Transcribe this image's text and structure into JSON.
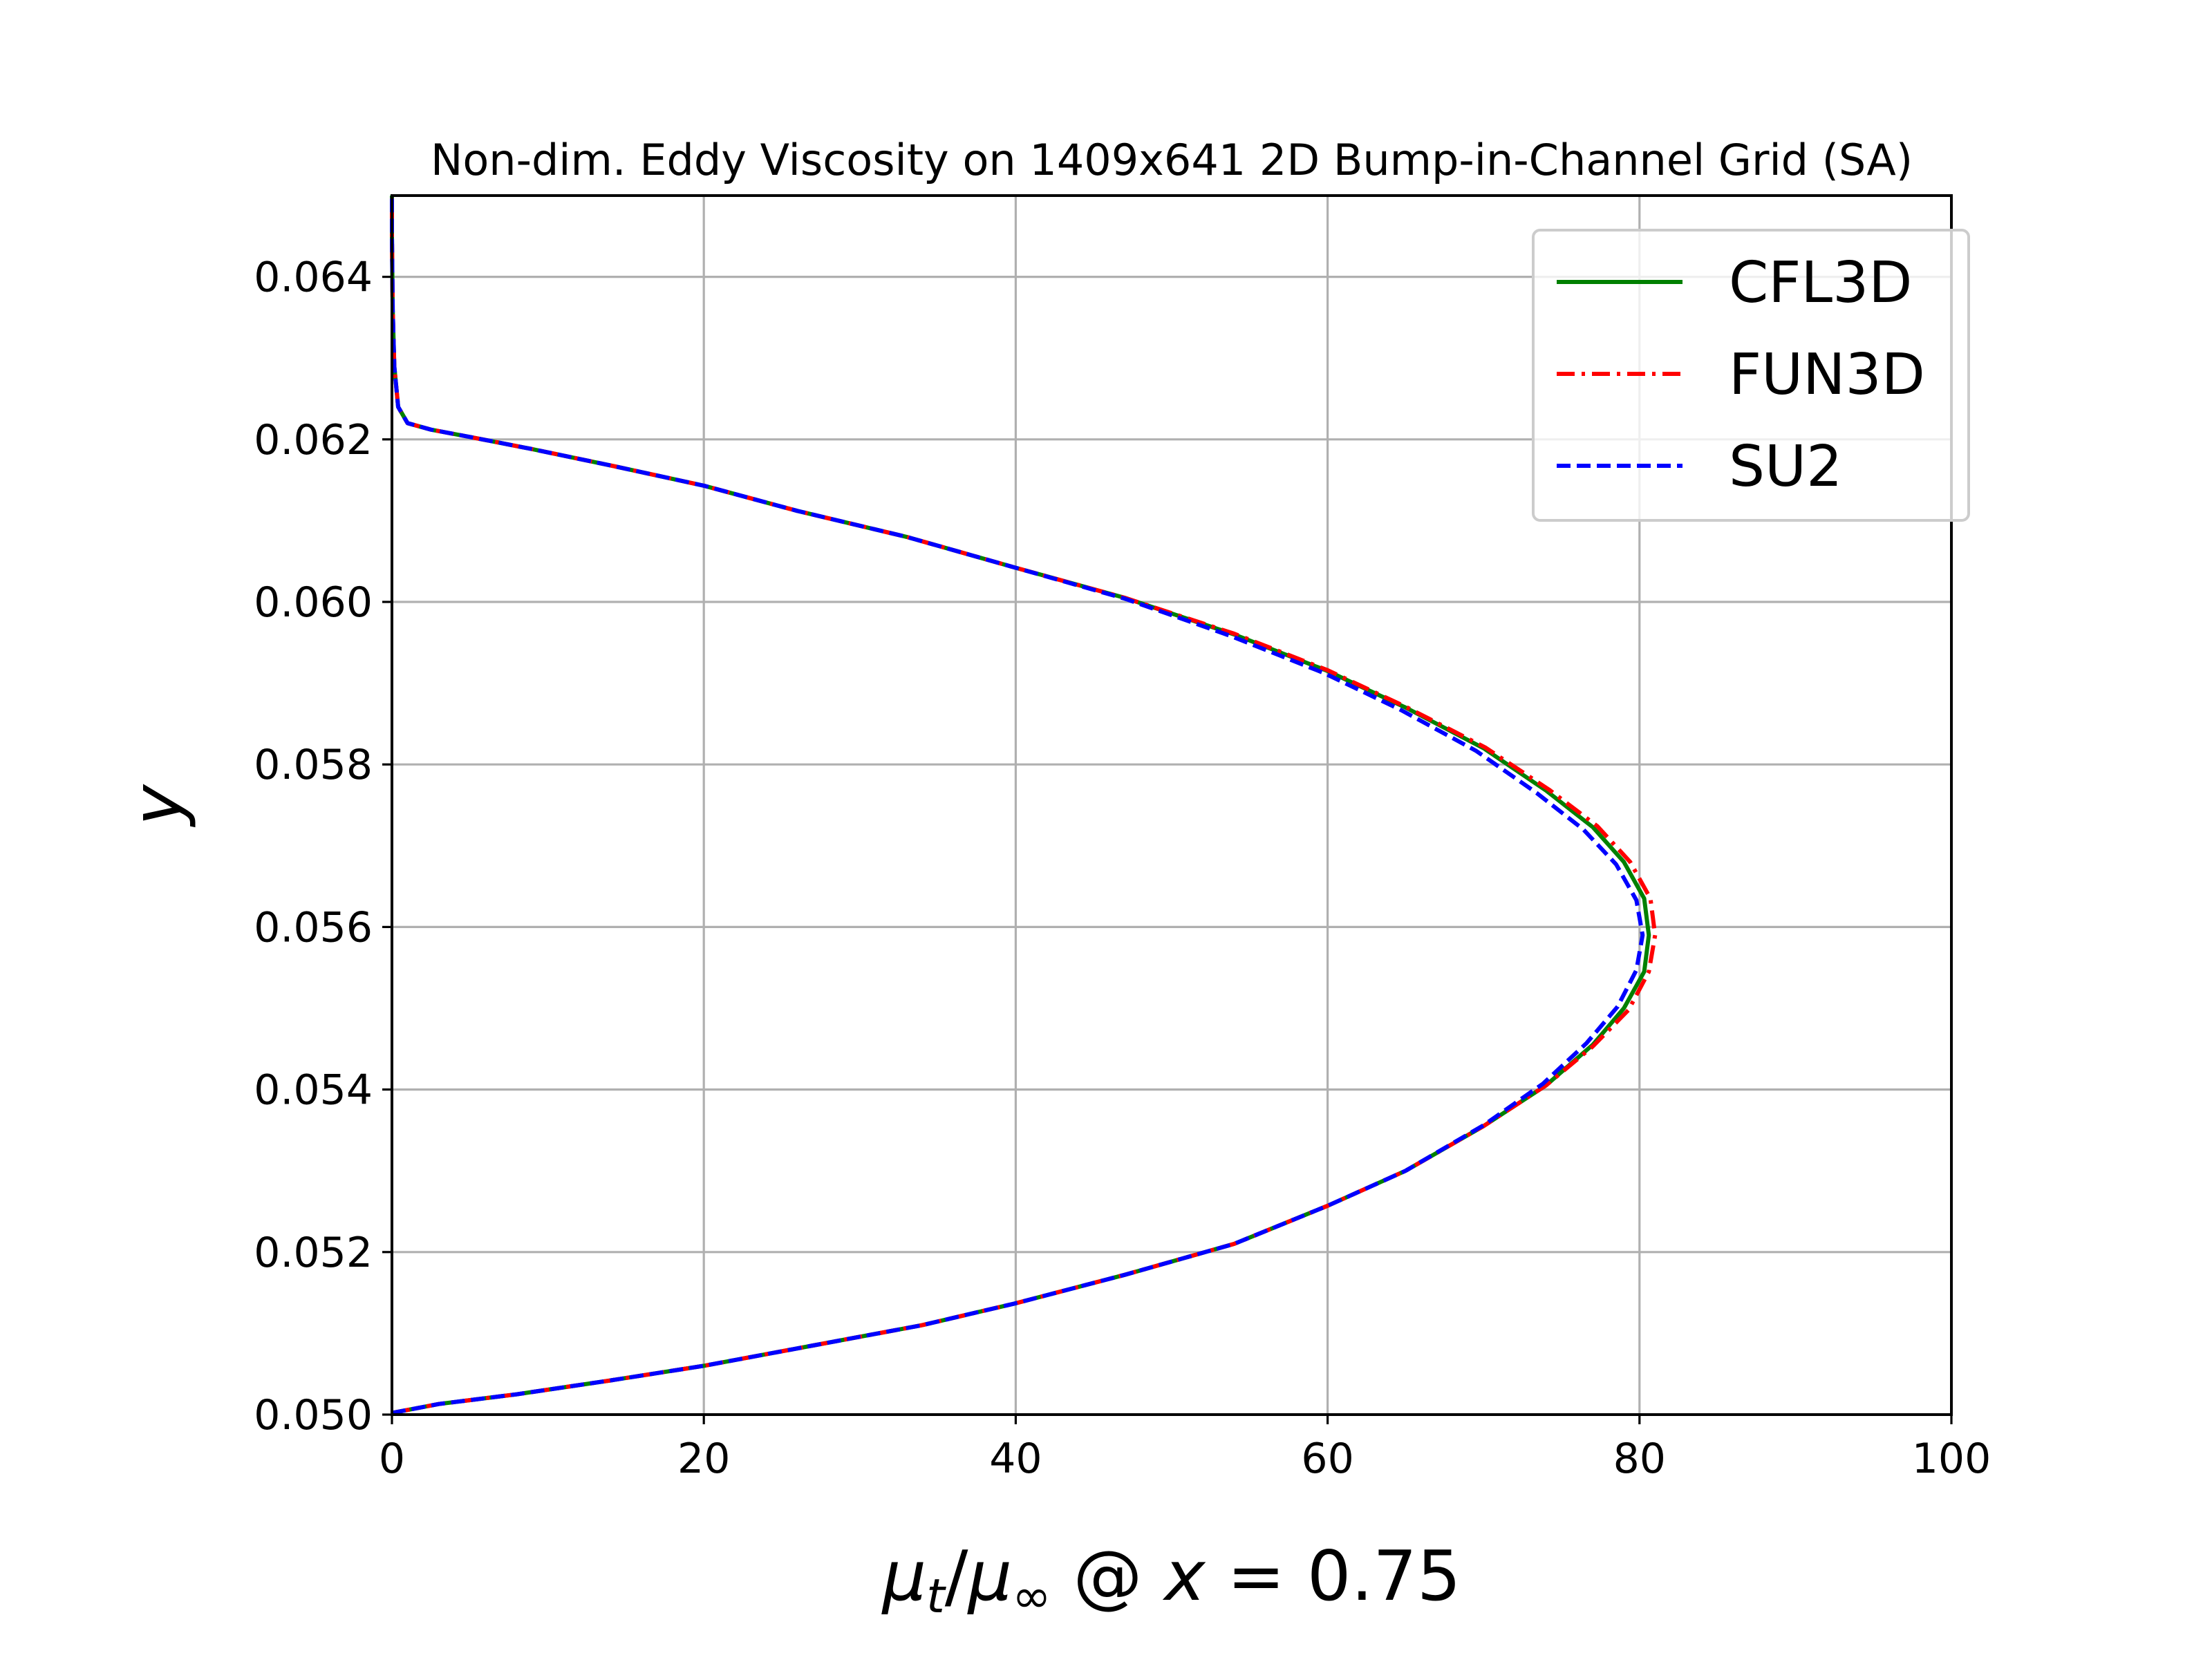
{
  "chart_data": {
    "type": "line",
    "title": "Non-dim. Eddy Viscosity on 1409x641 2D Bump-in-Channel Grid (SA)",
    "xlabel": "μt/μ∞ @ x = 0.75",
    "xlabel_parts": {
      "mu": "μ",
      "t": "t",
      "slash": "/",
      "inf": "∞",
      "at": " @ ",
      "x": "x",
      "rest": " = 0.75"
    },
    "ylabel": "y",
    "xlim": [
      0,
      100
    ],
    "ylim": [
      0.05,
      0.065
    ],
    "xticks": [
      0,
      20,
      40,
      60,
      80,
      100
    ],
    "xtick_labels": [
      "0",
      "20",
      "40",
      "60",
      "80",
      "100"
    ],
    "yticks": [
      0.05,
      0.052,
      0.054,
      0.056,
      0.058,
      0.06,
      0.062,
      0.064
    ],
    "ytick_labels": [
      "0.050",
      "0.052",
      "0.054",
      "0.056",
      "0.058",
      "0.060",
      "0.062",
      "0.064"
    ],
    "grid": true,
    "legend_position": "top-right",
    "series": [
      {
        "name": "CFL3D",
        "color": "#008000",
        "dash": "solid",
        "points": [
          [
            0.0,
            0.05002
          ],
          [
            3,
            0.05013
          ],
          [
            8,
            0.05025
          ],
          [
            14,
            0.05042
          ],
          [
            20,
            0.0506
          ],
          [
            27,
            0.05085
          ],
          [
            34,
            0.0511
          ],
          [
            40,
            0.05137
          ],
          [
            47,
            0.05172
          ],
          [
            54,
            0.0521
          ],
          [
            60,
            0.05257
          ],
          [
            65,
            0.053
          ],
          [
            70,
            0.05355
          ],
          [
            74,
            0.05405
          ],
          [
            77,
            0.05455
          ],
          [
            79,
            0.055
          ],
          [
            80.3,
            0.05545
          ],
          [
            80.6,
            0.0559
          ],
          [
            80.3,
            0.05635
          ],
          [
            79,
            0.0568
          ],
          [
            77,
            0.05723
          ],
          [
            74,
            0.05768
          ],
          [
            70,
            0.0582
          ],
          [
            65,
            0.0587
          ],
          [
            60,
            0.05915
          ],
          [
            54,
            0.0596
          ],
          [
            47,
            0.06005
          ],
          [
            40,
            0.06042
          ],
          [
            33,
            0.0608
          ],
          [
            26,
            0.06112
          ],
          [
            20,
            0.06143
          ],
          [
            14,
            0.06168
          ],
          [
            9,
            0.06188
          ],
          [
            5,
            0.06203
          ],
          [
            2.5,
            0.06212
          ],
          [
            1,
            0.0622
          ],
          [
            0.4,
            0.0624
          ],
          [
            0.15,
            0.0629
          ],
          [
            0.05,
            0.0636
          ],
          [
            0.0,
            0.0645
          ],
          [
            0.0,
            0.065
          ]
        ]
      },
      {
        "name": "FUN3D",
        "color": "#ff0000",
        "dash": "dashdot",
        "points": [
          [
            0.0,
            0.05002
          ],
          [
            3,
            0.05013
          ],
          [
            8,
            0.05025
          ],
          [
            14,
            0.05042
          ],
          [
            20,
            0.0506
          ],
          [
            27,
            0.05085
          ],
          [
            34,
            0.0511
          ],
          [
            40,
            0.05137
          ],
          [
            47,
            0.05172
          ],
          [
            54,
            0.0521
          ],
          [
            60,
            0.05257
          ],
          [
            65,
            0.053
          ],
          [
            70,
            0.05355
          ],
          [
            74,
            0.05405
          ],
          [
            77,
            0.05453
          ],
          [
            79.3,
            0.05498
          ],
          [
            80.6,
            0.05545
          ],
          [
            81,
            0.0559
          ],
          [
            80.7,
            0.05635
          ],
          [
            79.4,
            0.0568
          ],
          [
            77.3,
            0.05724
          ],
          [
            74.2,
            0.05769
          ],
          [
            70.1,
            0.05821
          ],
          [
            65,
            0.05871
          ],
          [
            60,
            0.05916
          ],
          [
            54,
            0.05961
          ],
          [
            47,
            0.06005
          ],
          [
            40,
            0.06042
          ],
          [
            33,
            0.0608
          ],
          [
            26,
            0.06112
          ],
          [
            20,
            0.06143
          ],
          [
            14,
            0.06168
          ],
          [
            9,
            0.06188
          ],
          [
            5,
            0.06203
          ],
          [
            2.5,
            0.06212
          ],
          [
            1,
            0.0622
          ],
          [
            0.4,
            0.0624
          ],
          [
            0.15,
            0.0629
          ],
          [
            0.05,
            0.0636
          ],
          [
            0.0,
            0.0645
          ],
          [
            0.0,
            0.065
          ]
        ]
      },
      {
        "name": "SU2",
        "color": "#0000ff",
        "dash": "dashed",
        "points": [
          [
            0.0,
            0.05002
          ],
          [
            3,
            0.05013
          ],
          [
            8,
            0.05025
          ],
          [
            14,
            0.05042
          ],
          [
            20,
            0.0506
          ],
          [
            27,
            0.05085
          ],
          [
            34,
            0.0511
          ],
          [
            40,
            0.05137
          ],
          [
            47,
            0.05172
          ],
          [
            54,
            0.0521
          ],
          [
            60,
            0.05257
          ],
          [
            65,
            0.053
          ],
          [
            70,
            0.05356
          ],
          [
            73.8,
            0.05407
          ],
          [
            76.6,
            0.05457
          ],
          [
            78.6,
            0.05502
          ],
          [
            79.8,
            0.05547
          ],
          [
            80.2,
            0.0559
          ],
          [
            79.8,
            0.05633
          ],
          [
            78.5,
            0.05677
          ],
          [
            76.4,
            0.0572
          ],
          [
            73.4,
            0.05765
          ],
          [
            69.5,
            0.05817
          ],
          [
            64.6,
            0.05868
          ],
          [
            59.7,
            0.05913
          ],
          [
            53.8,
            0.05958
          ],
          [
            47,
            0.06004
          ],
          [
            40,
            0.06042
          ],
          [
            33,
            0.0608
          ],
          [
            26,
            0.06112
          ],
          [
            20,
            0.06143
          ],
          [
            14,
            0.06168
          ],
          [
            9,
            0.06188
          ],
          [
            5,
            0.06203
          ],
          [
            2.5,
            0.06212
          ],
          [
            1,
            0.0622
          ],
          [
            0.4,
            0.0624
          ],
          [
            0.15,
            0.0629
          ],
          [
            0.05,
            0.0636
          ],
          [
            0.0,
            0.0645
          ],
          [
            0.0,
            0.065
          ]
        ]
      }
    ]
  }
}
